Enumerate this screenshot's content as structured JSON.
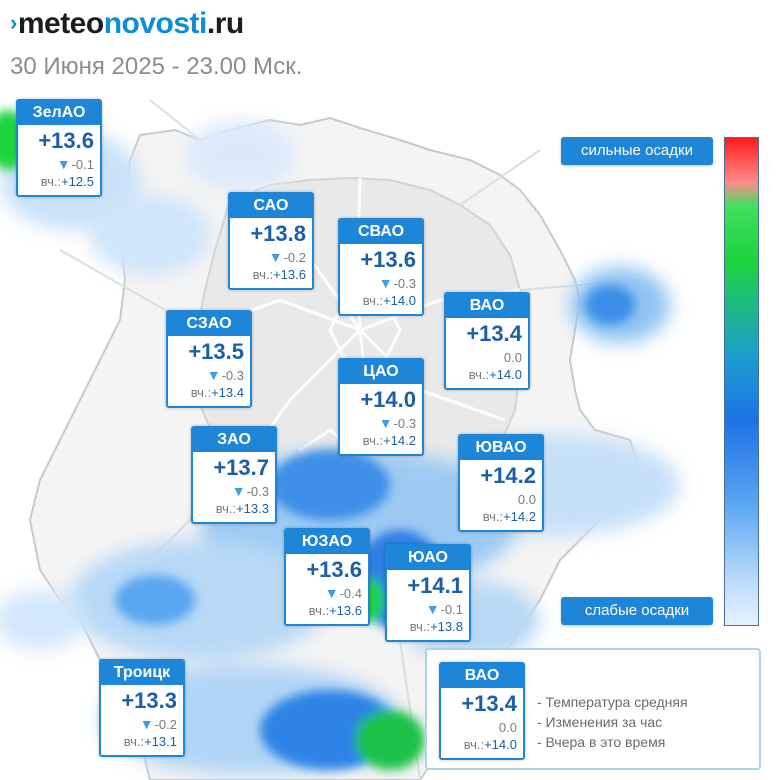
{
  "header": {
    "brand_mark": "›",
    "brand_part_a": "meteo",
    "brand_part_b": "novosti",
    "brand_part_c": ".ru",
    "date_line": "30 Июня 2025 - 23.00 Мск."
  },
  "icons": {
    "arrow_down": "arrow-down-icon"
  },
  "districts": [
    {
      "name": "ЗелАО",
      "temp": "+13.6",
      "arrow": "▼",
      "change": "-0.1",
      "yest_label": "вч.:",
      "yest": "+12.5"
    },
    {
      "name": "САО",
      "temp": "+13.8",
      "arrow": "▼",
      "change": "-0.2",
      "yest_label": "вч.:",
      "yest": "+13.6"
    },
    {
      "name": "СВАО",
      "temp": "+13.6",
      "arrow": "▼",
      "change": "-0.3",
      "yest_label": "вч.:",
      "yest": "+14.0"
    },
    {
      "name": "ВАО",
      "temp": "+13.4",
      "arrow": "",
      "change": "0.0",
      "yest_label": "вч.:",
      "yest": "+14.0"
    },
    {
      "name": "СЗАО",
      "temp": "+13.5",
      "arrow": "▼",
      "change": "-0.3",
      "yest_label": "вч.:",
      "yest": "+13.4"
    },
    {
      "name": "ЦАО",
      "temp": "+14.0",
      "arrow": "▼",
      "change": "-0.3",
      "yest_label": "вч.:",
      "yest": "+14.2"
    },
    {
      "name": "ЗАО",
      "temp": "+13.7",
      "arrow": "▼",
      "change": "-0.3",
      "yest_label": "вч.:",
      "yest": "+13.3"
    },
    {
      "name": "ЮВАО",
      "temp": "+14.2",
      "arrow": "",
      "change": "0.0",
      "yest_label": "вч.:",
      "yest": "+14.2"
    },
    {
      "name": "ЮЗАО",
      "temp": "+13.6",
      "arrow": "▼",
      "change": "-0.4",
      "yest_label": "вч.:",
      "yest": "+13.6"
    },
    {
      "name": "ЮАО",
      "temp": "+14.1",
      "arrow": "▼",
      "change": "-0.1",
      "yest_label": "вч.:",
      "yest": "+13.8"
    },
    {
      "name": "Троицк",
      "temp": "+13.3",
      "arrow": "▼",
      "change": "-0.2",
      "yest_label": "вч.:",
      "yest": "+13.1"
    }
  ],
  "scale": {
    "top_label": "сильные осадки",
    "bottom_label": "слабые осадки",
    "colors": [
      "#ff1b1b",
      "#ff8a8a",
      "#1ed43c",
      "#1c9dd0",
      "#1d72e6",
      "#5aa6f2",
      "#e6f2fd"
    ]
  },
  "legend": {
    "sample": {
      "name": "ВАО",
      "temp": "+13.4",
      "arrow": "",
      "change": "0.0",
      "yest_label": "вч.:",
      "yest": "+14.0"
    },
    "lines": [
      "- Температура средняя",
      "- Изменения за час",
      "- Вчера в это время"
    ]
  },
  "colors": {
    "accent": "#1e86d8",
    "temp_text": "#1a5fa8",
    "precip_light": "#c9e2f8",
    "precip_mid": "#5aa6f2",
    "precip_strong": "#1d72e6",
    "precip_green": "#1ed43c"
  }
}
